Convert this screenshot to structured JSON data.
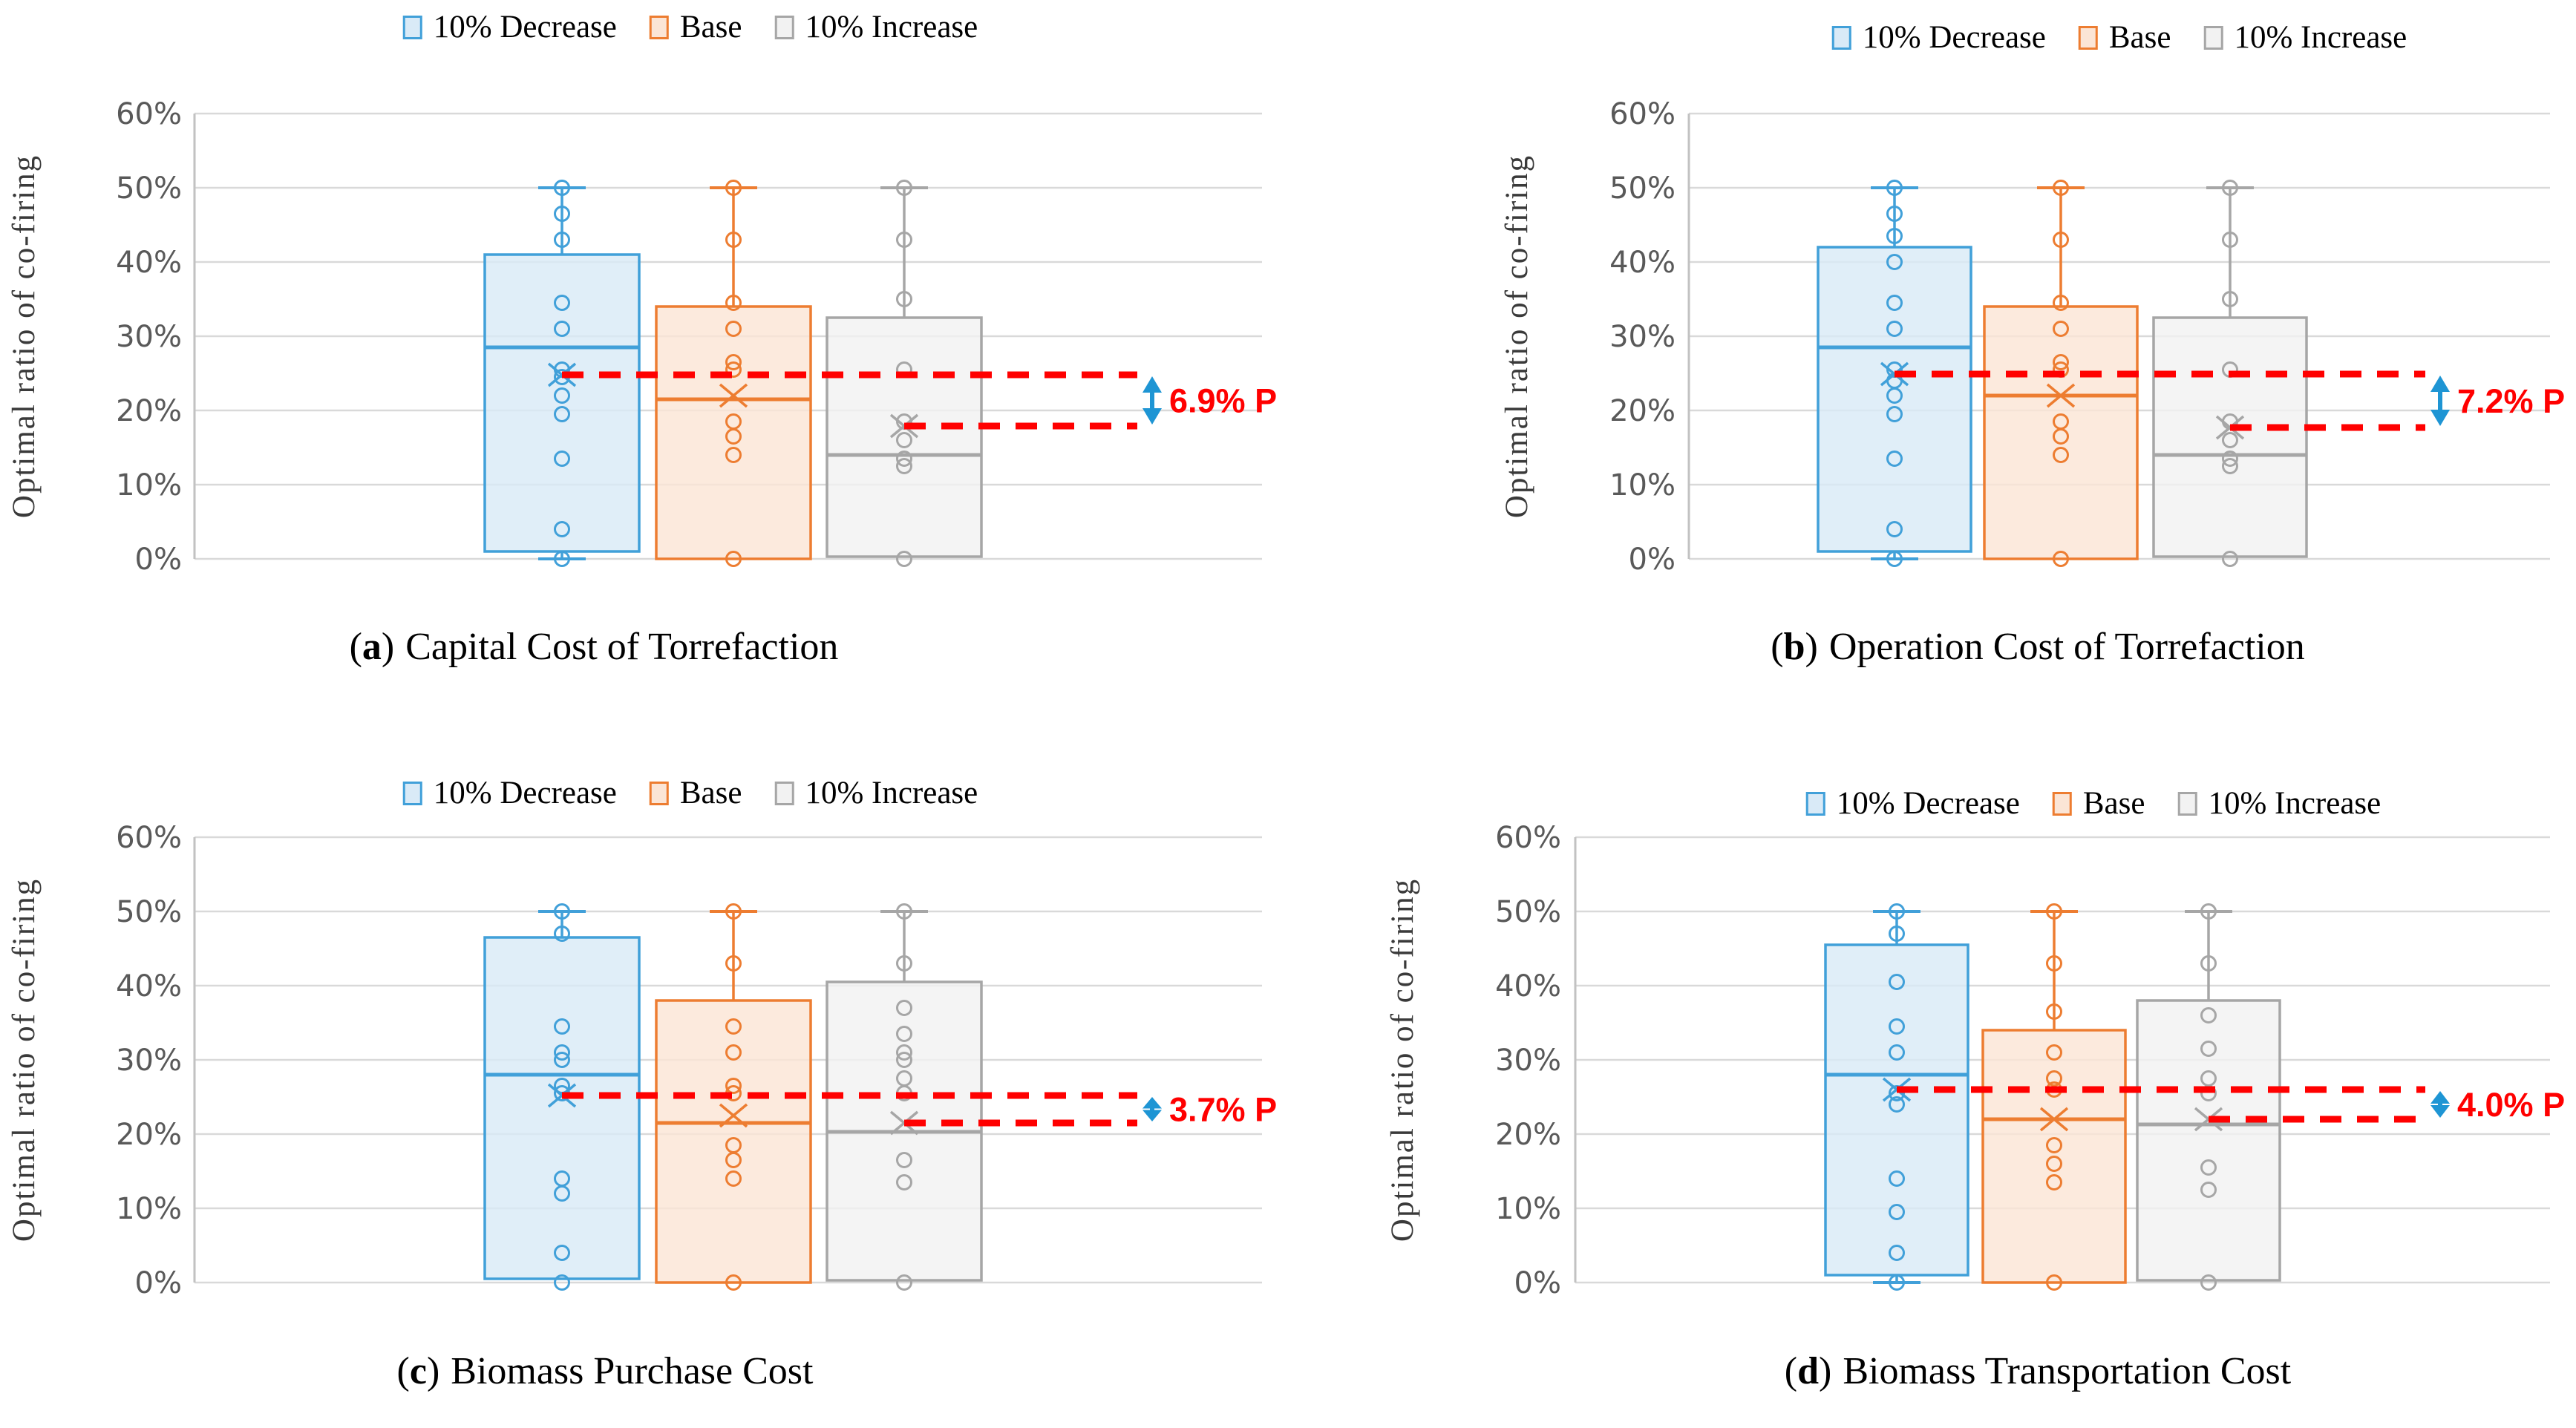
{
  "figure": {
    "background": "#FFFFFF",
    "description": "Box plots of optimal ratio of co-firing under 10% parameter changes"
  },
  "legend": {
    "items": [
      {
        "key": "decrease",
        "label": "10% Decrease",
        "stroke": "#41A0D9",
        "fill": "#D9EAF7"
      },
      {
        "key": "base",
        "label": "Base",
        "stroke": "#ED7D31",
        "fill": "#FBE5D6"
      },
      {
        "key": "increase",
        "label": "10% Increase",
        "stroke": "#A6A6A6",
        "fill": "#F2F2F2"
      }
    ]
  },
  "y_axis": {
    "title": "Optimal ratio of co-firing",
    "ticks": [
      "60%",
      "50%",
      "40%",
      "30%",
      "20%",
      "10%",
      "0%"
    ],
    "tick_values": [
      60,
      50,
      40,
      30,
      20,
      10,
      0
    ],
    "min": 0,
    "max": 60,
    "grid": true
  },
  "annotation_style": {
    "line_color": "#FF0000",
    "arrow_color": "#1E95D4",
    "label_color": "#FF0000"
  },
  "chart_data": [
    {
      "type": "box",
      "panel": "a",
      "caption": {
        "prefix": "(",
        "letter": "a",
        "suffix": ")",
        "title": "Capital Cost of Torrefaction"
      },
      "ylabel": "Optimal ratio of co-firing",
      "ylim": [
        0,
        60
      ],
      "series": [
        {
          "name": "10% Decrease",
          "key": "decrease",
          "box": {
            "whisker_low": 0,
            "q1": 1,
            "median": 28.5,
            "q3": 41,
            "whisker_high": 50,
            "mean": 24.8
          },
          "points": [
            50,
            46.5,
            43,
            34.5,
            31,
            25.5,
            24.5,
            22,
            19.5,
            13.5,
            4,
            0
          ]
        },
        {
          "name": "Base",
          "key": "base",
          "box": {
            "whisker_low": 0,
            "q1": 0,
            "median": 21.5,
            "q3": 34,
            "whisker_high": 50,
            "mean": 22
          },
          "points": [
            50,
            43,
            34.5,
            31,
            26.5,
            25.5,
            18.5,
            16.5,
            14,
            0
          ]
        },
        {
          "name": "10% Increase",
          "key": "increase",
          "box": {
            "whisker_low": 0,
            "q1": 0.3,
            "median": 14,
            "q3": 32.5,
            "whisker_high": 50,
            "mean": 17.9
          },
          "points": [
            50,
            43,
            35,
            25.5,
            18.5,
            16,
            13.5,
            12.5,
            0
          ]
        }
      ],
      "annotation": {
        "label": "6.9% P",
        "top_value": 24.8,
        "bottom_value": 17.9
      }
    },
    {
      "type": "box",
      "panel": "b",
      "caption": {
        "prefix": "(",
        "letter": "b",
        "suffix": ")",
        "title": "Operation Cost of Torrefaction"
      },
      "ylabel": "Optimal ratio of co-firing",
      "ylim": [
        0,
        60
      ],
      "series": [
        {
          "name": "10% Decrease",
          "key": "decrease",
          "box": {
            "whisker_low": 0,
            "q1": 1,
            "median": 28.5,
            "q3": 42,
            "whisker_high": 50,
            "mean": 24.9
          },
          "points": [
            50,
            46.5,
            43.5,
            40,
            34.5,
            31,
            25.5,
            24,
            22,
            19.5,
            13.5,
            4,
            0
          ]
        },
        {
          "name": "Base",
          "key": "base",
          "box": {
            "whisker_low": 0,
            "q1": 0,
            "median": 22,
            "q3": 34,
            "whisker_high": 50,
            "mean": 22
          },
          "points": [
            50,
            43,
            34.5,
            31,
            26.5,
            25.5,
            18.5,
            16.5,
            14,
            0
          ]
        },
        {
          "name": "10% Increase",
          "key": "increase",
          "box": {
            "whisker_low": 0,
            "q1": 0.3,
            "median": 14,
            "q3": 32.5,
            "whisker_high": 50,
            "mean": 17.7
          },
          "points": [
            50,
            43,
            35,
            25.5,
            18.5,
            16,
            13.5,
            12.5,
            0
          ]
        }
      ],
      "annotation": {
        "label": "7.2% P",
        "top_value": 24.9,
        "bottom_value": 17.7
      }
    },
    {
      "type": "box",
      "panel": "c",
      "caption": {
        "prefix": "(",
        "letter": "c",
        "suffix": ")",
        "title": "Biomass Purchase Cost"
      },
      "ylabel": "Optimal ratio of co-firing",
      "ylim": [
        0,
        60
      ],
      "series": [
        {
          "name": "10% Decrease",
          "key": "decrease",
          "box": {
            "whisker_low": 0,
            "q1": 0.5,
            "median": 28,
            "q3": 46.5,
            "whisker_high": 50,
            "mean": 25.2
          },
          "points": [
            50,
            47,
            34.5,
            31,
            30,
            26.5,
            25.5,
            14,
            12,
            4,
            0
          ]
        },
        {
          "name": "Base",
          "key": "base",
          "box": {
            "whisker_low": 0,
            "q1": 0,
            "median": 21.5,
            "q3": 38,
            "whisker_high": 50,
            "mean": 22.5
          },
          "points": [
            50,
            43,
            34.5,
            31,
            26.5,
            25.5,
            18.5,
            16.5,
            14,
            0
          ]
        },
        {
          "name": "10% Increase",
          "key": "increase",
          "box": {
            "whisker_low": 0,
            "q1": 0.3,
            "median": 20.3,
            "q3": 40.5,
            "whisker_high": 50,
            "mean": 21.5
          },
          "points": [
            50,
            43,
            37,
            33.5,
            31,
            30,
            27.5,
            25.5,
            16.5,
            13.5,
            0
          ]
        }
      ],
      "annotation": {
        "label": "3.7% P",
        "top_value": 25.2,
        "bottom_value": 21.5
      }
    },
    {
      "type": "box",
      "panel": "d",
      "caption": {
        "prefix": "(",
        "letter": "d",
        "suffix": ")",
        "title": "Biomass Transportation Cost"
      },
      "ylabel": "Optimal ratio of co-firing",
      "ylim": [
        0,
        60
      ],
      "series": [
        {
          "name": "10% Decrease",
          "key": "decrease",
          "box": {
            "whisker_low": 0,
            "q1": 1,
            "median": 28,
            "q3": 45.5,
            "whisker_high": 50,
            "mean": 26
          },
          "points": [
            50,
            47,
            40.5,
            34.5,
            31,
            25.5,
            24,
            14,
            9.5,
            4,
            0
          ]
        },
        {
          "name": "Base",
          "key": "base",
          "box": {
            "whisker_low": 0,
            "q1": 0,
            "median": 22,
            "q3": 34,
            "whisker_high": 50,
            "mean": 22
          },
          "points": [
            50,
            43,
            36.5,
            31,
            27.5,
            26,
            18.5,
            16,
            13.5,
            0
          ]
        },
        {
          "name": "10% Increase",
          "key": "increase",
          "box": {
            "whisker_low": 0,
            "q1": 0.3,
            "median": 21.3,
            "q3": 38,
            "whisker_high": 50,
            "mean": 22
          },
          "points": [
            50,
            43,
            36,
            31.5,
            27.5,
            25.5,
            15.5,
            12.5,
            0
          ]
        }
      ],
      "annotation": {
        "label": "4.0% P",
        "top_value": 26,
        "bottom_value": 22
      }
    }
  ]
}
